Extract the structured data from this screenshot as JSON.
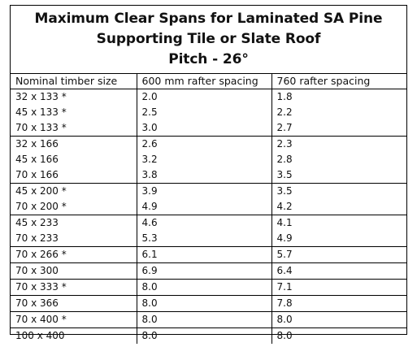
{
  "title_lines": [
    "Maximum Clear Spans for Laminated SA Pine",
    "Supporting Tile or Slate Roof",
    "Pitch - 26°"
  ],
  "columns": [
    "Nominal timber size",
    "600 mm rafter spacing",
    "760 rafter spacing"
  ],
  "rows": [
    [
      "32 x 133 *",
      "2.0",
      "1.8"
    ],
    [
      "45 x 133 *",
      "2.5",
      "2.2"
    ],
    [
      "70 x 133 *",
      "3.0",
      "2.7"
    ],
    [
      "32 x 166",
      "2.6",
      "2.3"
    ],
    [
      "45 x 166",
      "3.2",
      "2.8"
    ],
    [
      "70 x 166",
      "3.8",
      "3.5"
    ],
    [
      "45 x 200 *",
      "3.9",
      "3.5"
    ],
    [
      "70 x 200 *",
      "4.9",
      "4.2"
    ],
    [
      "45 x 233",
      "4.6",
      "4.1"
    ],
    [
      "70 x 233",
      "5.3",
      "4.9"
    ],
    [
      "70 x 266 *",
      "6.1",
      "5.7"
    ],
    [
      "70 x 300",
      "6.9",
      "6.4"
    ],
    [
      "70 x 333 *",
      "8.0",
      "7.1"
    ],
    [
      "70 x 366",
      "8.0",
      "7.8"
    ],
    [
      "70 x 400 *",
      "8.0",
      "8.0"
    ],
    [
      "100 x 400",
      "8.0",
      "8.0"
    ]
  ],
  "group_starts": [
    3,
    6,
    8,
    10,
    11,
    12,
    13,
    14,
    15
  ]
}
